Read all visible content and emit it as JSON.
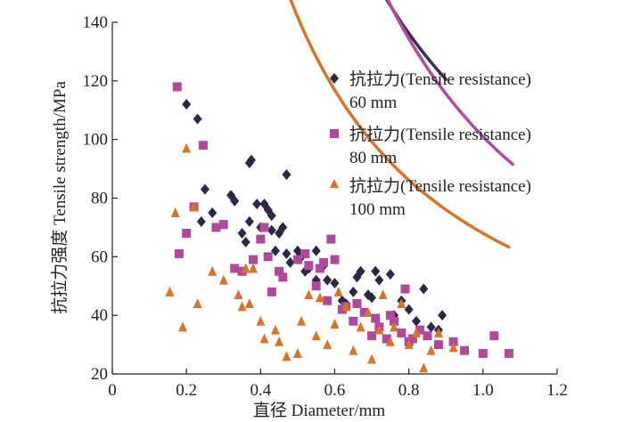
{
  "chart_data": {
    "type": "scatter",
    "title": "",
    "xlabel": "直径 Diameter/mm",
    "ylabel": "抗拉力强度 Tensile strength/MPa",
    "xlim": [
      0,
      1.2
    ],
    "ylim": [
      20,
      140
    ],
    "xticks": [
      0,
      0.2,
      0.4,
      0.6,
      0.8,
      1.0,
      1.2
    ],
    "xtick_labels": [
      "0",
      "0.2",
      "0.4",
      "0.6",
      "0.8",
      "1.0",
      "1.2"
    ],
    "yticks": [
      20,
      40,
      60,
      80,
      100,
      120,
      140
    ],
    "ytick_labels": [
      "20",
      "40",
      "60",
      "80",
      "100",
      "120",
      "140"
    ],
    "grid": false,
    "legend_position": "top-right",
    "series": [
      {
        "name": "抗拉力(Tensile resistance) 60 mm",
        "legend_line1": "抗拉力(Tensile resistance)",
        "legend_line2": "60 mm",
        "marker": "diamond",
        "color": "#2e2547",
        "trend_color": "#3a2d5c",
        "trend_x_range": [
          0.2,
          0.9
        ],
        "trend_coeffs": [
          108.0,
          -1.04
        ],
        "points": [
          [
            0.2,
            112
          ],
          [
            0.23,
            107
          ],
          [
            0.25,
            83
          ],
          [
            0.24,
            72
          ],
          [
            0.27,
            75
          ],
          [
            0.32,
            81
          ],
          [
            0.33,
            79
          ],
          [
            0.35,
            68
          ],
          [
            0.36,
            65
          ],
          [
            0.37,
            72
          ],
          [
            0.37,
            92
          ],
          [
            0.375,
            93
          ],
          [
            0.39,
            78
          ],
          [
            0.4,
            70
          ],
          [
            0.41,
            78
          ],
          [
            0.42,
            76
          ],
          [
            0.43,
            74
          ],
          [
            0.43,
            69
          ],
          [
            0.44,
            62
          ],
          [
            0.45,
            68
          ],
          [
            0.46,
            70
          ],
          [
            0.47,
            88
          ],
          [
            0.47,
            61
          ],
          [
            0.48,
            58
          ],
          [
            0.5,
            62
          ],
          [
            0.51,
            60
          ],
          [
            0.52,
            55
          ],
          [
            0.53,
            56
          ],
          [
            0.55,
            62
          ],
          [
            0.55,
            52
          ],
          [
            0.57,
            57
          ],
          [
            0.58,
            52
          ],
          [
            0.6,
            51
          ],
          [
            0.62,
            45
          ],
          [
            0.63,
            44
          ],
          [
            0.65,
            48
          ],
          [
            0.66,
            53
          ],
          [
            0.67,
            55
          ],
          [
            0.69,
            47
          ],
          [
            0.7,
            46
          ],
          [
            0.71,
            55
          ],
          [
            0.72,
            52
          ],
          [
            0.75,
            54
          ],
          [
            0.76,
            40
          ],
          [
            0.78,
            45
          ],
          [
            0.8,
            42
          ],
          [
            0.82,
            38
          ],
          [
            0.84,
            49
          ],
          [
            0.86,
            36
          ],
          [
            0.88,
            35
          ],
          [
            0.89,
            40
          ]
        ]
      },
      {
        "name": "抗拉力(Tensile resistance) 80 mm",
        "legend_line1": "抗拉力(Tensile resistance)",
        "legend_line2": "80 mm",
        "marker": "square",
        "color": "#b0489c",
        "trend_color": "#b24aa0",
        "trend_x_range": [
          0.18,
          1.08
        ],
        "trend_coeffs": [
          101.0,
          -1.28
        ],
        "points": [
          [
            0.175,
            118
          ],
          [
            0.18,
            61
          ],
          [
            0.2,
            68
          ],
          [
            0.22,
            77
          ],
          [
            0.245,
            98
          ],
          [
            0.28,
            70
          ],
          [
            0.3,
            71
          ],
          [
            0.33,
            56
          ],
          [
            0.35,
            55
          ],
          [
            0.38,
            59
          ],
          [
            0.4,
            66
          ],
          [
            0.41,
            70
          ],
          [
            0.42,
            60
          ],
          [
            0.43,
            48
          ],
          [
            0.45,
            55
          ],
          [
            0.46,
            53
          ],
          [
            0.5,
            59
          ],
          [
            0.52,
            61
          ],
          [
            0.53,
            57
          ],
          [
            0.55,
            50
          ],
          [
            0.56,
            56
          ],
          [
            0.57,
            58
          ],
          [
            0.58,
            45
          ],
          [
            0.59,
            66
          ],
          [
            0.6,
            59
          ],
          [
            0.62,
            42
          ],
          [
            0.63,
            43
          ],
          [
            0.65,
            38
          ],
          [
            0.66,
            44
          ],
          [
            0.68,
            41
          ],
          [
            0.7,
            33
          ],
          [
            0.71,
            39
          ],
          [
            0.72,
            36
          ],
          [
            0.74,
            32
          ],
          [
            0.75,
            40
          ],
          [
            0.76,
            38
          ],
          [
            0.78,
            34
          ],
          [
            0.79,
            49
          ],
          [
            0.8,
            31
          ],
          [
            0.81,
            32
          ],
          [
            0.83,
            35
          ],
          [
            0.85,
            33
          ],
          [
            0.88,
            30
          ],
          [
            0.92,
            31
          ],
          [
            0.95,
            28
          ],
          [
            1.0,
            27
          ],
          [
            1.03,
            33
          ],
          [
            1.07,
            27
          ]
        ]
      },
      {
        "name": "抗拉力(Tensile resistance) 100 mm",
        "legend_line1": "抗拉力(Tensile resistance)",
        "legend_line2": "100 mm",
        "marker": "triangle",
        "color": "#d8742a",
        "trend_color": "#d8742a",
        "trend_x_range": [
          0.16,
          1.07
        ],
        "trend_coeffs": [
          68.0,
          -1.06
        ],
        "points": [
          [
            0.155,
            48
          ],
          [
            0.17,
            75
          ],
          [
            0.19,
            36
          ],
          [
            0.2,
            97
          ],
          [
            0.22,
            77
          ],
          [
            0.23,
            44
          ],
          [
            0.27,
            55
          ],
          [
            0.3,
            52
          ],
          [
            0.34,
            47
          ],
          [
            0.35,
            43
          ],
          [
            0.36,
            56
          ],
          [
            0.37,
            44
          ],
          [
            0.38,
            56
          ],
          [
            0.4,
            38
          ],
          [
            0.41,
            32
          ],
          [
            0.44,
            35
          ],
          [
            0.45,
            31
          ],
          [
            0.47,
            26
          ],
          [
            0.5,
            27
          ],
          [
            0.51,
            38
          ],
          [
            0.53,
            47
          ],
          [
            0.55,
            33
          ],
          [
            0.56,
            46
          ],
          [
            0.58,
            30
          ],
          [
            0.6,
            37
          ],
          [
            0.61,
            48
          ],
          [
            0.63,
            43
          ],
          [
            0.65,
            28
          ],
          [
            0.67,
            36
          ],
          [
            0.69,
            41
          ],
          [
            0.7,
            25
          ],
          [
            0.72,
            35
          ],
          [
            0.73,
            47
          ],
          [
            0.75,
            31
          ],
          [
            0.76,
            36
          ],
          [
            0.78,
            44
          ],
          [
            0.8,
            30
          ],
          [
            0.82,
            34
          ],
          [
            0.84,
            22
          ],
          [
            0.86,
            28
          ],
          [
            0.88,
            34
          ],
          [
            0.92,
            29
          ]
        ]
      }
    ]
  }
}
